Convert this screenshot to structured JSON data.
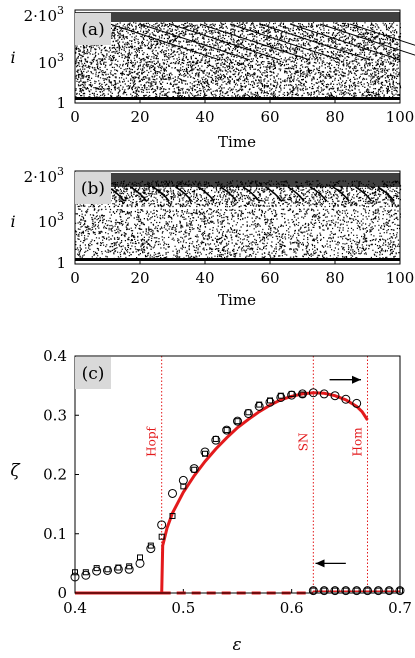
{
  "chart_data": [
    {
      "panel_label": "(a)",
      "type": "scatter",
      "xlabel": "Time",
      "ylabel": "i",
      "xticks": [
        "0",
        "20",
        "40",
        "60",
        "80",
        "100"
      ],
      "yticks": [
        "1",
        "10^3",
        "2·10^3"
      ],
      "xlim": [
        0,
        100
      ],
      "ylim": [
        1,
        2000
      ],
      "description_of_marks": "dense black raster of spike events; occasional slowly descending streaks"
    },
    {
      "panel_label": "(b)",
      "type": "scatter",
      "xlabel": "Time",
      "ylabel": "i",
      "xticks": [
        "0",
        "20",
        "40",
        "60",
        "80",
        "100"
      ],
      "yticks": [
        "1",
        "10^3",
        "2·10^3"
      ],
      "xlim": [
        0,
        100
      ],
      "ylim": [
        1,
        2000
      ],
      "description_of_marks": "black raster with periodic descending fronts every ~7 time units"
    },
    {
      "panel_label": "(c)",
      "type": "line",
      "xlabel": "ε",
      "ylabel": "ζ",
      "xlim": [
        0.4,
        0.7
      ],
      "ylim": [
        0,
        0.4
      ],
      "xticks": [
        "0.4",
        "0.5",
        "0.6",
        "0.7"
      ],
      "yticks": [
        "0",
        "0.1",
        "0.2",
        "0.3",
        "0.4"
      ],
      "vlines": [
        {
          "x": 0.48,
          "label": "Hopf"
        },
        {
          "x": 0.62,
          "label": "SN"
        },
        {
          "x": 0.67,
          "label": "Hom"
        }
      ],
      "arrows": [
        {
          "direction": "right",
          "x0": 0.635,
          "x1": 0.664,
          "y": 0.36
        },
        {
          "direction": "left",
          "x0": 0.65,
          "x1": 0.622,
          "y": 0.05
        }
      ],
      "series": [
        {
          "style": "solid-red",
          "points": [
            [
              0.4,
              0
            ],
            [
              0.48,
              0
            ],
            [
              0.481,
              0.08
            ],
            [
              0.485,
              0.11
            ],
            [
              0.49,
              0.135
            ],
            [
              0.5,
              0.17
            ],
            [
              0.51,
              0.198
            ],
            [
              0.52,
              0.222
            ],
            [
              0.53,
              0.243
            ],
            [
              0.54,
              0.262
            ],
            [
              0.55,
              0.279
            ],
            [
              0.56,
              0.293
            ],
            [
              0.57,
              0.306
            ],
            [
              0.58,
              0.317
            ],
            [
              0.59,
              0.326
            ],
            [
              0.6,
              0.332
            ],
            [
              0.61,
              0.336
            ],
            [
              0.62,
              0.338
            ],
            [
              0.63,
              0.337
            ],
            [
              0.64,
              0.333
            ],
            [
              0.65,
              0.326
            ],
            [
              0.66,
              0.315
            ],
            [
              0.665,
              0.306
            ],
            [
              0.67,
              0.292
            ]
          ]
        },
        {
          "style": "dashed-red",
          "points": [
            [
              0.48,
              0
            ],
            [
              0.62,
              0
            ]
          ]
        },
        {
          "style": "solid-red-thin",
          "points": [
            [
              0.62,
              0.003
            ],
            [
              0.7,
              0.003
            ]
          ]
        },
        {
          "marker": "circle",
          "points": [
            [
              0.4,
              0.027
            ],
            [
              0.41,
              0.03
            ],
            [
              0.42,
              0.037
            ],
            [
              0.43,
              0.038
            ],
            [
              0.44,
              0.04
            ],
            [
              0.45,
              0.04
            ],
            [
              0.46,
              0.05
            ],
            [
              0.47,
              0.075
            ],
            [
              0.48,
              0.115
            ],
            [
              0.49,
              0.168
            ],
            [
              0.5,
              0.19
            ],
            [
              0.51,
              0.21
            ],
            [
              0.52,
              0.238
            ],
            [
              0.53,
              0.258
            ],
            [
              0.54,
              0.275
            ],
            [
              0.55,
              0.29
            ],
            [
              0.56,
              0.303
            ],
            [
              0.57,
              0.315
            ],
            [
              0.58,
              0.322
            ],
            [
              0.59,
              0.33
            ],
            [
              0.6,
              0.334
            ],
            [
              0.61,
              0.336
            ],
            [
              0.62,
              0.338
            ],
            [
              0.63,
              0.336
            ],
            [
              0.64,
              0.333
            ],
            [
              0.65,
              0.327
            ],
            [
              0.66,
              0.32
            ],
            [
              0.62,
              0.004
            ],
            [
              0.63,
              0.004
            ],
            [
              0.64,
              0.004
            ],
            [
              0.65,
              0.004
            ],
            [
              0.66,
              0.004
            ],
            [
              0.67,
              0.004
            ],
            [
              0.68,
              0.004
            ],
            [
              0.69,
              0.004
            ],
            [
              0.7,
              0.004
            ]
          ]
        },
        {
          "marker": "square",
          "points": [
            [
              0.4,
              0.035
            ],
            [
              0.41,
              0.035
            ],
            [
              0.42,
              0.042
            ],
            [
              0.43,
              0.04
            ],
            [
              0.44,
              0.043
            ],
            [
              0.45,
              0.045
            ],
            [
              0.46,
              0.06
            ],
            [
              0.47,
              0.08
            ],
            [
              0.48,
              0.095
            ],
            [
              0.49,
              0.13
            ],
            [
              0.5,
              0.18
            ],
            [
              0.51,
              0.208
            ],
            [
              0.52,
              0.235
            ],
            [
              0.53,
              0.26
            ],
            [
              0.54,
              0.275
            ],
            [
              0.55,
              0.29
            ],
            [
              0.56,
              0.305
            ],
            [
              0.57,
              0.318
            ],
            [
              0.58,
              0.325
            ],
            [
              0.59,
              0.333
            ],
            [
              0.6,
              0.336
            ],
            [
              0.61,
              0.335
            ],
            [
              0.62,
              0.004
            ],
            [
              0.63,
              0.004
            ],
            [
              0.64,
              0.004
            ],
            [
              0.65,
              0.004
            ],
            [
              0.66,
              0.004
            ],
            [
              0.67,
              0.004
            ],
            [
              0.68,
              0.004
            ],
            [
              0.69,
              0.004
            ],
            [
              0.7,
              0.004
            ]
          ]
        }
      ]
    }
  ],
  "colors": {
    "red": "#e31a1c",
    "label_bg": "#d9d9d9",
    "ink": "#000000"
  }
}
